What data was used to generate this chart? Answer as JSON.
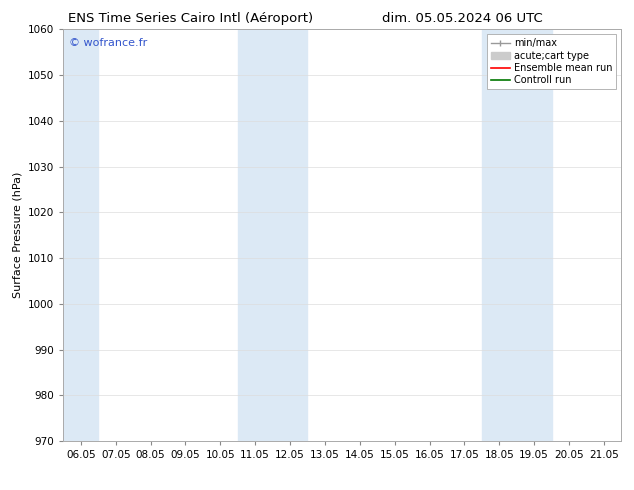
{
  "title_left": "ENS Time Series Cairo Intl (Aéroport)",
  "title_right": "dim. 05.05.2024 06 UTC",
  "ylabel": "Surface Pressure (hPa)",
  "ylim": [
    970,
    1060
  ],
  "yticks": [
    970,
    980,
    990,
    1000,
    1010,
    1020,
    1030,
    1040,
    1050,
    1060
  ],
  "xtick_labels": [
    "06.05",
    "07.05",
    "08.05",
    "09.05",
    "10.05",
    "11.05",
    "12.05",
    "13.05",
    "14.05",
    "15.05",
    "16.05",
    "17.05",
    "18.05",
    "19.05",
    "20.05",
    "21.05"
  ],
  "shaded_bands": [
    {
      "xstart": 0,
      "xend": 1,
      "color": "#dce9f5"
    },
    {
      "xstart": 5,
      "xend": 7,
      "color": "#dce9f5"
    },
    {
      "xstart": 12,
      "xend": 14,
      "color": "#dce9f5"
    }
  ],
  "watermark": "© wofrance.fr",
  "watermark_color": "#3355cc",
  "bg_color": "#ffffff",
  "plot_bg_color": "#ffffff",
  "grid_color": "#dddddd",
  "title_fontsize": 9.5,
  "label_fontsize": 8,
  "tick_fontsize": 7.5,
  "legend_fontsize": 7
}
